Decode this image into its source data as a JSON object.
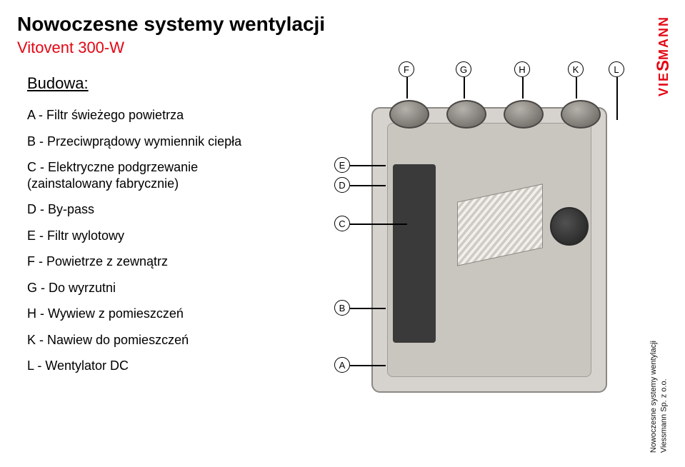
{
  "title": "Nowoczesne systemy wentylacji",
  "subtitle": "Vitovent 300-W",
  "section_heading": "Budowa:",
  "legend": {
    "a": "A - Filtr świeżego powietrza",
    "b": "B - Przeciwprądowy wymiennik ciepła",
    "c": "C - Elektryczne podgrzewanie (zainstalowany fabrycznie)",
    "d": "D - By-pass",
    "e": "E - Filtr wylotowy",
    "f": "F - Powietrze z zewnątrz",
    "g": "G - Do wyrzutni",
    "h": "H - Wywiew z pomieszczeń",
    "k": "K - Nawiew do pomieszczeń",
    "l": "L - Wentylator DC"
  },
  "callouts": {
    "f": "F",
    "g": "G",
    "h": "H",
    "k": "K",
    "l": "L",
    "e": "E",
    "d": "D",
    "c": "C",
    "b": "B",
    "a": "A"
  },
  "brand": {
    "pre": "VIE",
    "s": "S",
    "post": "MANN"
  },
  "footer": {
    "line1": "Nowoczesne systemy wentylacji",
    "line2": "Viessmann Sp. z o.o."
  },
  "colors": {
    "accent_red": "#e30613",
    "text": "#000000",
    "unit_body": "#d6d3cf",
    "unit_border": "#8b8883"
  }
}
